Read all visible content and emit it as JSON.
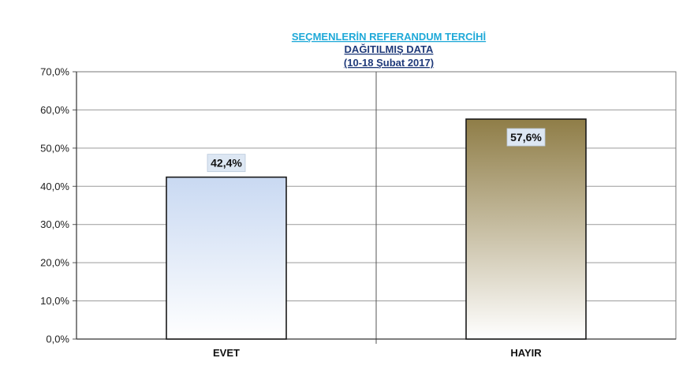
{
  "chart_data": {
    "type": "bar",
    "title": "SEÇMENLERİN REFERANDUM TERCİHİ",
    "subtitle": "DAĞITILMIŞ DATA",
    "date_range": "(10-18 Şubat 2017)",
    "categories": [
      "EVET",
      "HAYIR"
    ],
    "values": [
      42.4,
      57.6
    ],
    "data_labels": [
      "42,4%",
      "57,6%"
    ],
    "y_ticks": [
      "0,0%",
      "10,0%",
      "20,0%",
      "30,0%",
      "40,0%",
      "50,0%",
      "60,0%",
      "70,0%"
    ],
    "ylim": [
      0,
      70
    ],
    "grid": true,
    "legend": "none",
    "colors": {
      "title": "#1fa9d8",
      "subtitle": "#1f3a7a",
      "evet_top": "#c9d9f2",
      "evet_bottom": "#ffffff",
      "hayir_top": "#8f7d47",
      "hayir_bottom": "#ffffff",
      "label_box": "#dde7f3",
      "grid": "#9a9a9a"
    }
  }
}
